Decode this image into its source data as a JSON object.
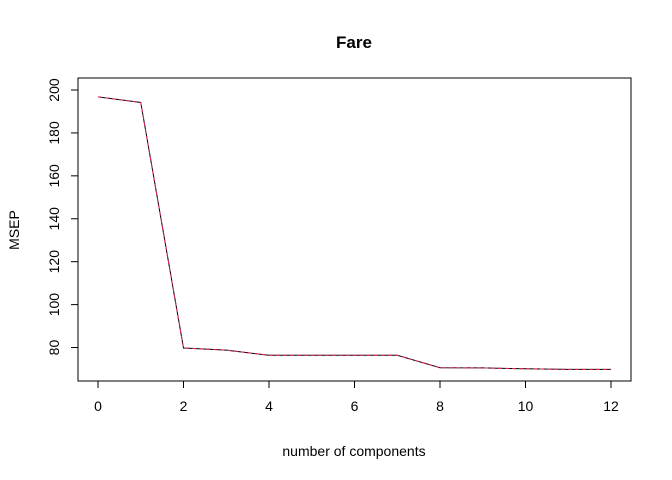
{
  "chart_data": {
    "type": "line",
    "title": "Fare",
    "xlabel": "number of components",
    "ylabel": "MSEP",
    "xlim": [
      0,
      12
    ],
    "ylim": [
      70,
      200
    ],
    "x_ticks": [
      0,
      2,
      4,
      6,
      8,
      10,
      12
    ],
    "y_ticks": [
      80,
      100,
      120,
      140,
      160,
      180,
      200
    ],
    "grid": false,
    "x": [
      0,
      1,
      2,
      3,
      4,
      5,
      6,
      7,
      8,
      9,
      10,
      11,
      12
    ],
    "series": [
      {
        "values": [
          196.8,
          194.2,
          79.8,
          78.8,
          76.4,
          76.4,
          76.4,
          76.4,
          70.6,
          70.5,
          70.1,
          69.8,
          69.8
        ],
        "color": "#000000",
        "style": "solid"
      },
      {
        "values": [
          196.8,
          194.2,
          79.8,
          78.8,
          76.4,
          76.4,
          76.4,
          76.4,
          70.6,
          70.5,
          70.1,
          69.8,
          69.8
        ],
        "color": "#e0214f",
        "style": "dashed"
      }
    ]
  }
}
